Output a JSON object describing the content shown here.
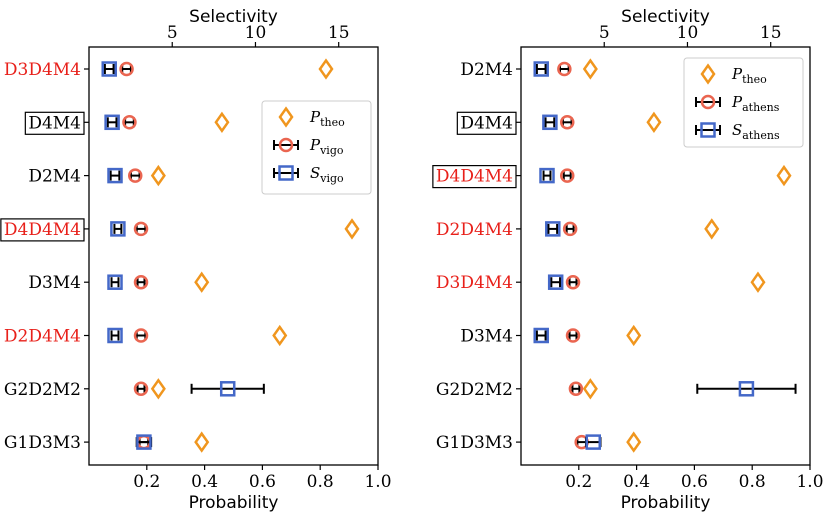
{
  "colors": {
    "theo": "#f0961e",
    "p_measured": "#ea6550",
    "s_measured": "#4468c8",
    "highlight": "#e8201a",
    "normal": "#000000"
  },
  "chart_data": [
    {
      "type": "scatter",
      "name": "vigo",
      "xlabel": "Probability",
      "x2label": "Selectivity",
      "xlim": [
        0,
        1.0
      ],
      "xticks": [
        0.2,
        0.4,
        0.6,
        0.8,
        1.0
      ],
      "xtick_labels": [
        "0.2",
        "0.4",
        "0.6",
        "0.8",
        "1.0"
      ],
      "x2ticks": [
        5,
        10,
        15
      ],
      "x2tick_labels": [
        "5",
        "10",
        "15"
      ],
      "x2_to_x_scale": 0.0576,
      "categories": [
        "D3D4M4",
        "D4M4",
        "D2M4",
        "D4D4M4",
        "D3M4",
        "D2D4M4",
        "G2D2M2",
        "G1D3M3"
      ],
      "category_style": [
        "red",
        "boxed",
        "black",
        "red-boxed",
        "black",
        "red",
        "black",
        "black"
      ],
      "legend": {
        "placement": "upper-right",
        "entries": [
          {
            "symbol": "P",
            "sub": "theo",
            "marker": "diamond"
          },
          {
            "symbol": "P",
            "sub": "vigo",
            "marker": "circle"
          },
          {
            "symbol": "S",
            "sub": "vigo",
            "marker": "square"
          }
        ]
      },
      "series": [
        {
          "name": "P_theo",
          "marker": "diamond",
          "values": [
            0.82,
            0.46,
            0.24,
            0.91,
            0.39,
            0.66,
            0.24,
            0.39
          ],
          "errors": [
            0,
            0,
            0,
            0,
            0,
            0,
            0,
            0
          ]
        },
        {
          "name": "P_vigo",
          "marker": "circle",
          "values": [
            0.13,
            0.14,
            0.16,
            0.18,
            0.18,
            0.18,
            0.18,
            0.19
          ],
          "errors": [
            0.015,
            0.015,
            0.015,
            0.015,
            0.012,
            0.015,
            0.012,
            0.015
          ]
        },
        {
          "name": "S_vigo",
          "marker": "square",
          "values": [
            0.07,
            0.08,
            0.09,
            0.1,
            0.09,
            0.09,
            0.48,
            0.19
          ],
          "errors": [
            0.015,
            0.015,
            0.015,
            0.012,
            0.012,
            0.012,
            0.125,
            0.025
          ]
        }
      ]
    },
    {
      "type": "scatter",
      "name": "athens",
      "xlabel": "Probability",
      "x2label": "Selectivity",
      "xlim": [
        0,
        1.0
      ],
      "xticks": [
        0.2,
        0.4,
        0.6,
        0.8,
        1.0
      ],
      "xtick_labels": [
        "0.2",
        "0.4",
        "0.6",
        "0.8",
        "1.0"
      ],
      "x2ticks": [
        5,
        10,
        15
      ],
      "x2tick_labels": [
        "5",
        "10",
        "15"
      ],
      "x2_to_x_scale": 0.0576,
      "categories": [
        "D2M4",
        "D4M4",
        "D4D4M4",
        "D2D4M4",
        "D3D4M4",
        "D3M4",
        "G2D2M2",
        "G1D3M3"
      ],
      "category_style": [
        "black",
        "boxed",
        "red-boxed",
        "red",
        "red",
        "black",
        "black",
        "black"
      ],
      "legend": {
        "placement": "upper-right",
        "entries": [
          {
            "symbol": "P",
            "sub": "theo",
            "marker": "diamond"
          },
          {
            "symbol": "P",
            "sub": "athens",
            "marker": "circle"
          },
          {
            "symbol": "S",
            "sub": "athens",
            "marker": "square"
          }
        ]
      },
      "series": [
        {
          "name": "P_theo",
          "marker": "diamond",
          "values": [
            0.24,
            0.46,
            0.91,
            0.66,
            0.82,
            0.39,
            0.24,
            0.39
          ],
          "errors": [
            0,
            0,
            0,
            0,
            0,
            0,
            0,
            0
          ]
        },
        {
          "name": "P_athens",
          "marker": "circle",
          "values": [
            0.15,
            0.16,
            0.16,
            0.17,
            0.18,
            0.18,
            0.19,
            0.21
          ],
          "errors": [
            0.015,
            0.015,
            0.012,
            0.012,
            0.012,
            0.012,
            0.012,
            0.015
          ]
        },
        {
          "name": "S_athens",
          "marker": "square",
          "values": [
            0.07,
            0.1,
            0.09,
            0.11,
            0.12,
            0.07,
            0.78,
            0.25
          ],
          "errors": [
            0.015,
            0.015,
            0.012,
            0.015,
            0.015,
            0.015,
            0.17,
            0.025
          ]
        }
      ]
    }
  ]
}
